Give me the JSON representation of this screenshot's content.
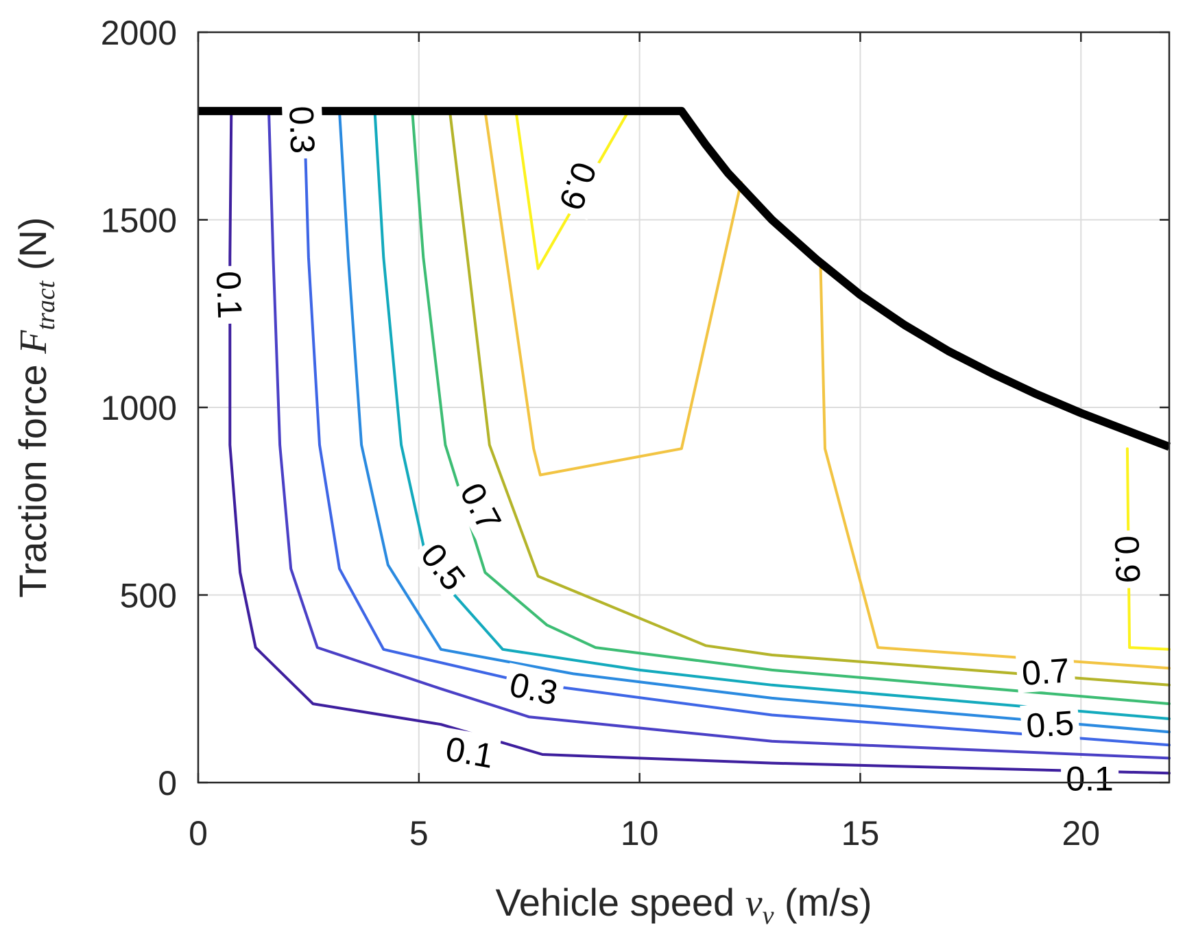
{
  "chart_data": {
    "type": "contour",
    "title": "",
    "xlabel": {
      "main": "Vehicle speed ",
      "symbol": "v",
      "subscript": "v",
      "unit": " (m/s)"
    },
    "ylabel": {
      "main": "Traction force ",
      "symbol": "F",
      "subscript": "tract",
      "unit": " (N)"
    },
    "xlim": [
      0,
      22
    ],
    "ylim": [
      0,
      2000
    ],
    "xticks": [
      0,
      5,
      10,
      15,
      20
    ],
    "yticks": [
      0,
      500,
      1000,
      1500,
      2000
    ],
    "xtick_labels": [
      "0",
      "5",
      "10",
      "15",
      "20"
    ],
    "ytick_labels": [
      "0",
      "500",
      "1000",
      "1500",
      "2000"
    ],
    "grid": true,
    "levels": [
      {
        "level": 0.1,
        "color": "#3e1f9e",
        "paths": [
          [
            [
              0.75,
              1790
            ],
            [
              0.72,
              1400
            ],
            [
              0.72,
              900
            ],
            [
              0.95,
              560
            ],
            [
              1.3,
              360
            ],
            [
              2.6,
              210
            ],
            [
              5.5,
              155
            ],
            [
              7.8,
              75
            ],
            [
              13,
              52
            ],
            [
              22,
              25
            ]
          ]
        ]
      },
      {
        "level": 0.2,
        "color": "#4a40c6",
        "paths": [
          [
            [
              1.6,
              1790
            ],
            [
              1.7,
              1400
            ],
            [
              1.85,
              900
            ],
            [
              2.1,
              570
            ],
            [
              2.7,
              360
            ],
            [
              5.5,
              250
            ],
            [
              7.5,
              175
            ],
            [
              13,
              110
            ],
            [
              22,
              65
            ]
          ]
        ]
      },
      {
        "level": 0.3,
        "color": "#3e66e6",
        "paths": [
          [
            [
              2.4,
              1790
            ],
            [
              2.5,
              1400
            ],
            [
              2.75,
              900
            ],
            [
              3.2,
              570
            ],
            [
              4.2,
              355
            ],
            [
              7.5,
              265
            ],
            [
              13,
              180
            ],
            [
              22,
              100
            ]
          ]
        ]
      },
      {
        "level": 0.4,
        "color": "#2a8ae0",
        "paths": [
          [
            [
              3.2,
              1790
            ],
            [
              3.4,
              1400
            ],
            [
              3.7,
              900
            ],
            [
              4.3,
              580
            ],
            [
              5.5,
              355
            ],
            [
              8.5,
              290
            ],
            [
              13,
              225
            ],
            [
              22,
              135
            ]
          ]
        ]
      },
      {
        "level": 0.5,
        "color": "#13aabd",
        "paths": [
          [
            [
              4.0,
              1790
            ],
            [
              4.2,
              1400
            ],
            [
              4.6,
              900
            ],
            [
              5.2,
              580
            ],
            [
              6.9,
              355
            ],
            [
              10,
              300
            ],
            [
              13,
              260
            ],
            [
              22,
              170
            ]
          ]
        ]
      },
      {
        "level": 0.6,
        "color": "#3dbd74",
        "paths": [
          [
            [
              4.85,
              1790
            ],
            [
              5.1,
              1400
            ],
            [
              5.6,
              900
            ],
            [
              6.5,
              560
            ],
            [
              7.9,
              420
            ],
            [
              9,
              360
            ],
            [
              13,
              300
            ],
            [
              22,
              210
            ]
          ]
        ]
      },
      {
        "level": 0.7,
        "color": "#b4b42a",
        "paths": [
          [
            [
              5.7,
              1790
            ],
            [
              6.1,
              1400
            ],
            [
              6.6,
              900
            ],
            [
              7.7,
              550
            ],
            [
              11.5,
              365
            ],
            [
              13,
              340
            ],
            [
              22,
              260
            ]
          ]
        ]
      },
      {
        "level": 0.8,
        "color": "#f2c443",
        "paths": [
          [
            [
              6.5,
              1790
            ],
            [
              7.6,
              890
            ],
            [
              7.75,
              820
            ],
            [
              10.95,
              890
            ],
            [
              12.3,
              1600
            ]
          ],
          [
            [
              14.1,
              1380
            ],
            [
              14.2,
              890
            ],
            [
              15.4,
              360
            ],
            [
              22,
              305
            ]
          ]
        ]
      },
      {
        "level": 0.9,
        "color": "#fcf21d",
        "paths": [
          [
            [
              7.2,
              1790
            ],
            [
              7.7,
              1370
            ],
            [
              9.75,
              1790
            ]
          ],
          [
            [
              21.05,
              890
            ],
            [
              21.1,
              360
            ],
            [
              22,
              355
            ]
          ]
        ]
      }
    ],
    "boundary": {
      "color": "#000000",
      "points": [
        [
          0,
          1790
        ],
        [
          10.95,
          1790
        ],
        [
          11.5,
          1700
        ],
        [
          12,
          1625
        ],
        [
          13,
          1500
        ],
        [
          14,
          1395
        ],
        [
          15,
          1300
        ],
        [
          16,
          1220
        ],
        [
          17,
          1150
        ],
        [
          18,
          1090
        ],
        [
          19,
          1035
        ],
        [
          20,
          985
        ],
        [
          21,
          940
        ],
        [
          22,
          895
        ]
      ]
    },
    "contour_labels": [
      {
        "text": "0.1",
        "x": 0.7,
        "y": 1300,
        "angle": 88
      },
      {
        "text": "0.3",
        "x": 2.35,
        "y": 1740,
        "angle": 88
      },
      {
        "text": "0.9",
        "x": 8.6,
        "y": 1590,
        "angle": 110
      },
      {
        "text": "0.7",
        "x": 6.4,
        "y": 735,
        "angle": 62
      },
      {
        "text": "0.5",
        "x": 5.55,
        "y": 575,
        "angle": 52
      },
      {
        "text": "0.9",
        "x": 21.05,
        "y": 595,
        "angle": 88
      },
      {
        "text": "0.3",
        "x": 7.6,
        "y": 250,
        "angle": 12
      },
      {
        "text": "0.1",
        "x": 6.15,
        "y": 80,
        "angle": 10
      },
      {
        "text": "0.7",
        "x": 19.2,
        "y": 295,
        "angle": -4
      },
      {
        "text": "0.5",
        "x": 19.3,
        "y": 155,
        "angle": -4
      },
      {
        "text": "0.1",
        "x": 20.2,
        "y": 10,
        "angle": 0
      }
    ]
  }
}
